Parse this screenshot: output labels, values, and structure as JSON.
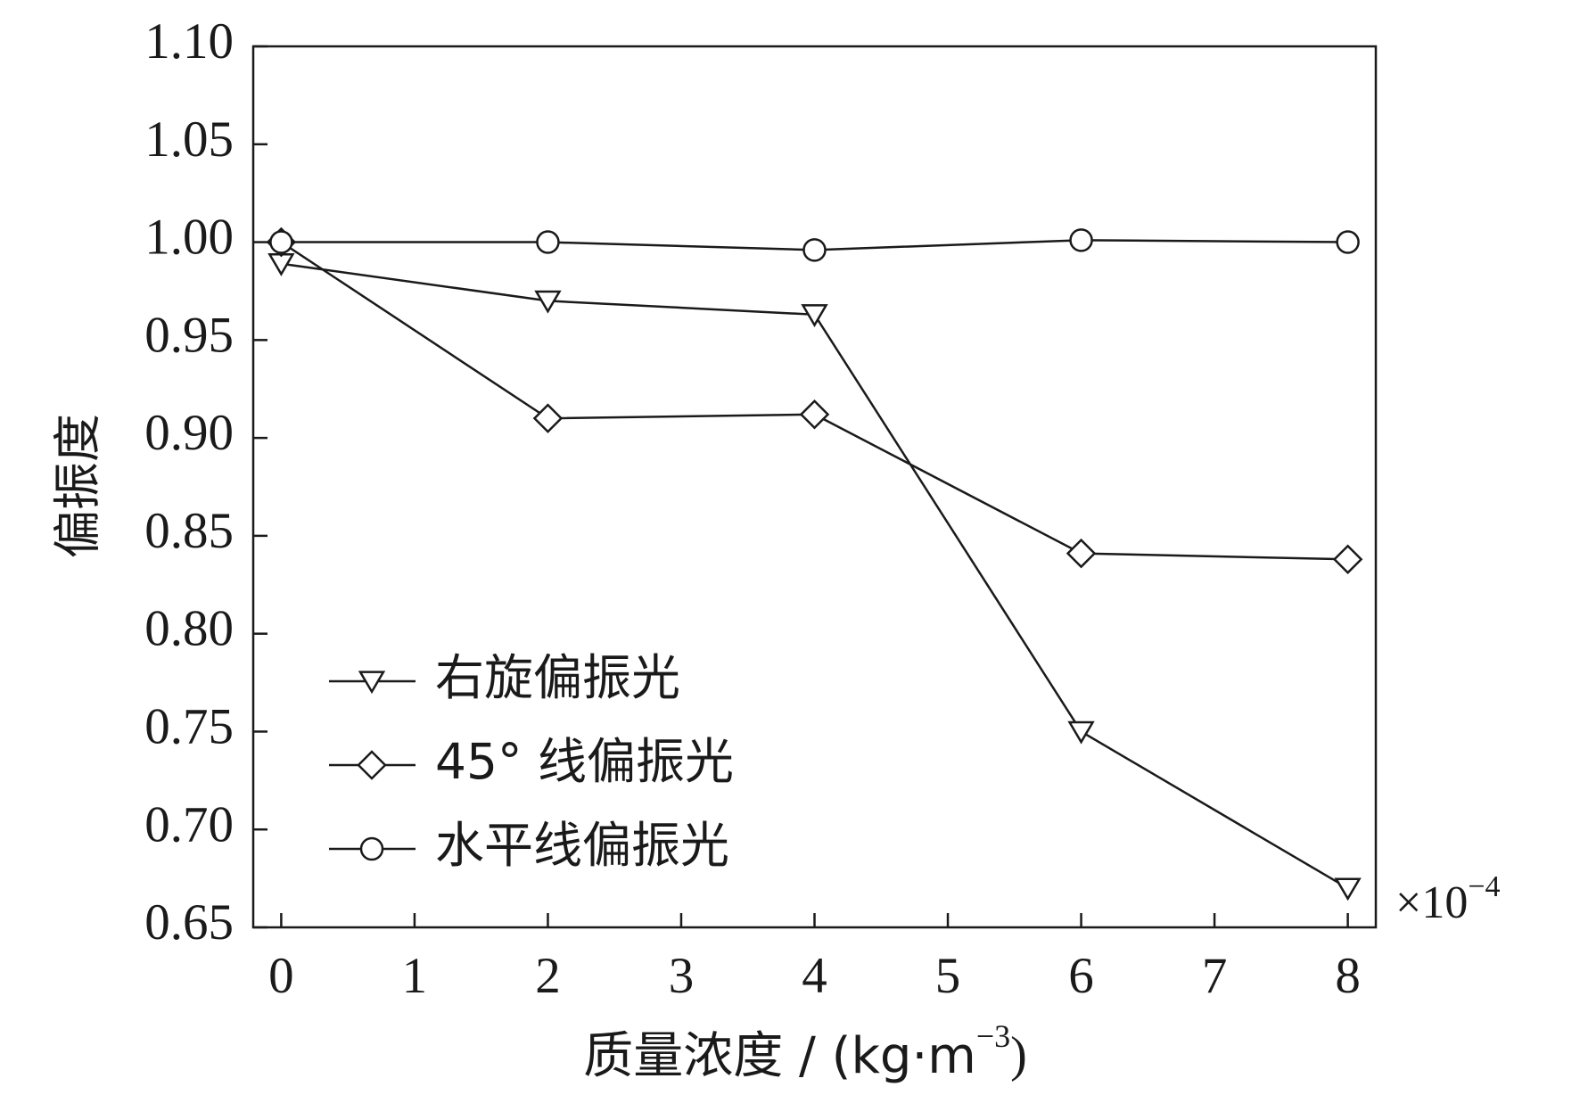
{
  "chart_data": {
    "type": "line",
    "y_label": "偏振度",
    "x_label": {
      "text": "质量浓度 / (kg·m",
      "superscript": "−3",
      "suffix": ")"
    },
    "x_multiplier": {
      "base": "×10",
      "exponent": "−4"
    },
    "x": [
      0,
      2,
      4,
      6,
      8
    ],
    "series": [
      {
        "name": "右旋偏振光",
        "color": "#1a1a1a",
        "marker": "triangle-down",
        "values": [
          0.989,
          0.97,
          0.963,
          0.75,
          0.67
        ]
      },
      {
        "name": "45° 线偏振光",
        "color": "#1a1a1a",
        "marker": "diamond",
        "values": [
          1.0,
          0.91,
          0.912,
          0.841,
          0.838
        ]
      },
      {
        "name": "水平线偏振光",
        "color": "#1a1a1a",
        "marker": "circle",
        "values": [
          1.0,
          1.0,
          0.996,
          1.001,
          1.0
        ]
      }
    ],
    "xlim": [
      -0.21,
      8.21
    ],
    "ylim": [
      0.65,
      1.1
    ],
    "xticks": [
      0,
      1,
      2,
      3,
      4,
      5,
      6,
      7,
      8
    ],
    "yticks": [
      0.65,
      {
        "value": 0.7,
        "label": "0.70"
      },
      0.75,
      {
        "value": 0.8,
        "label": "0.80"
      },
      0.85,
      {
        "value": 0.9,
        "label": "0.90"
      },
      0.95,
      {
        "value": 1.0,
        "label": "1.00"
      },
      1.05,
      {
        "value": 1.1,
        "label": "1.10"
      }
    ],
    "grid": false,
    "legend": "lower left"
  }
}
